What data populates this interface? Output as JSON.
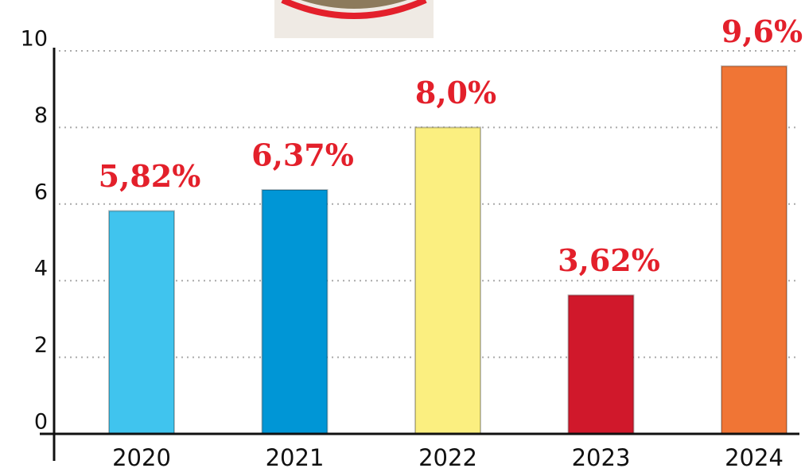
{
  "chart_data": {
    "type": "bar",
    "categories": [
      "2020",
      "2021",
      "2022",
      "2023",
      "2024"
    ],
    "values": [
      5.82,
      6.37,
      8.0,
      3.62,
      9.6
    ],
    "value_labels": [
      "5,82%",
      "6,37%",
      "8,0%",
      "3,62%",
      "9,6%"
    ],
    "colors": [
      "#40c4ee",
      "#0096d6",
      "#fbef80",
      "#d0182b",
      "#f07535"
    ],
    "ylim": [
      0,
      10
    ],
    "yticks": [
      0,
      2,
      4,
      6,
      8,
      10
    ],
    "grid": true
  }
}
